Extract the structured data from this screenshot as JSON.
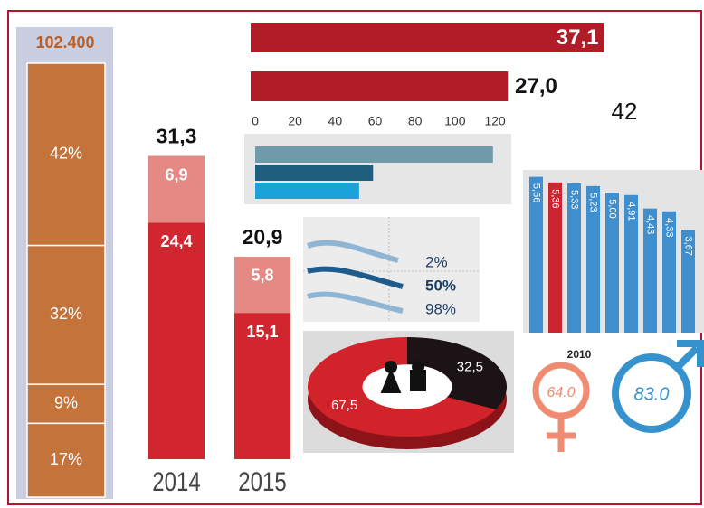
{
  "chart_data": [
    {
      "type": "stack",
      "title": "102.400",
      "values": [
        42,
        32,
        9,
        17
      ],
      "value_labels": [
        "42%",
        "32%",
        "9%",
        "17%"
      ],
      "color": "#c4743a",
      "ylim": [
        0,
        100
      ]
    },
    {
      "type": "stackbar",
      "categories": [
        "2014",
        "2015"
      ],
      "series": [
        {
          "color": "#d1262f",
          "values": [
            24.4,
            15.1
          ],
          "value_labels": [
            "24,4",
            "15,1"
          ]
        },
        {
          "color": "#e58985",
          "values": [
            6.9,
            5.8
          ],
          "value_labels": [
            "6,9",
            "5,8"
          ]
        }
      ],
      "totals": [
        31.3,
        20.9
      ],
      "total_labels": [
        "31,3",
        "20,9"
      ],
      "ylim": [
        0,
        32
      ]
    },
    {
      "type": "hbar",
      "values": [
        37.1,
        27.0
      ],
      "value_labels": [
        "37,1",
        "27,0"
      ],
      "color": "#b01c27",
      "xlim": [
        0,
        40
      ],
      "annotations": [
        "42"
      ]
    },
    {
      "type": "hbar",
      "values": [
        119,
        59,
        52
      ],
      "colors": [
        "#6f9aaa",
        "#1e5f7e",
        "#1ba2d9"
      ],
      "xlim": [
        0,
        120
      ],
      "xticks": [
        0,
        20,
        40,
        60,
        80,
        100,
        120
      ]
    },
    {
      "type": "annotation",
      "labels": [
        "2%",
        "50%",
        "98%"
      ]
    },
    {
      "type": "pie",
      "values": [
        32.5,
        67.5
      ],
      "value_labels": [
        "32,5",
        "67,5"
      ],
      "colors": [
        "#1b1315",
        "#d2232a"
      ]
    },
    {
      "type": "bar",
      "values": [
        5.56,
        5.36,
        5.33,
        5.23,
        5.0,
        4.91,
        4.43,
        4.33,
        3.67
      ],
      "value_labels": [
        "5,56",
        "5,36",
        "5,33",
        "5,23",
        "5,00",
        "4,91",
        "4,43",
        "4,33",
        "3,67"
      ],
      "colors": [
        "#3f8fcf",
        "#cc2530",
        "#3f8fcf",
        "#3f8fcf",
        "#3f8fcf",
        "#3f8fcf",
        "#3f8fcf",
        "#3f8fcf",
        "#3f8fcf"
      ],
      "ylim": [
        0,
        6
      ]
    },
    {
      "type": "annotation",
      "labels": [
        "2010",
        "64.0",
        "83.0"
      ]
    }
  ]
}
